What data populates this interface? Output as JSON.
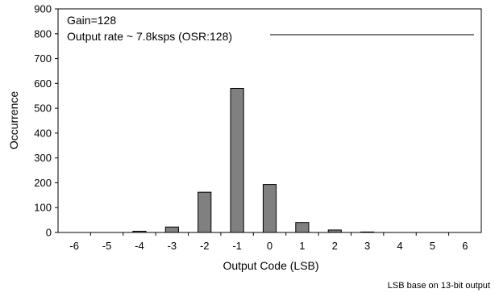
{
  "chart_data": {
    "type": "bar",
    "categories": [
      "-6",
      "-5",
      "-4",
      "-3",
      "-2",
      "-1",
      "0",
      "1",
      "2",
      "3",
      "4",
      "5",
      "6"
    ],
    "values": [
      0,
      0,
      5,
      22,
      162,
      580,
      193,
      40,
      10,
      2,
      0,
      0,
      0
    ],
    "ylim": [
      0,
      900
    ],
    "yticks": [
      0,
      100,
      200,
      300,
      400,
      500,
      600,
      700,
      800,
      900
    ],
    "xlabel": "Output Code (LSB)",
    "ylabel": "Occurrence",
    "annotations": [
      "Gain=128",
      "Output rate ~ 7.8ksps (OSR:128)"
    ],
    "footnote": "LSB base on 13-bit output",
    "grid": false,
    "bar_color": "#808080",
    "bar_edge_color": "#000000"
  }
}
